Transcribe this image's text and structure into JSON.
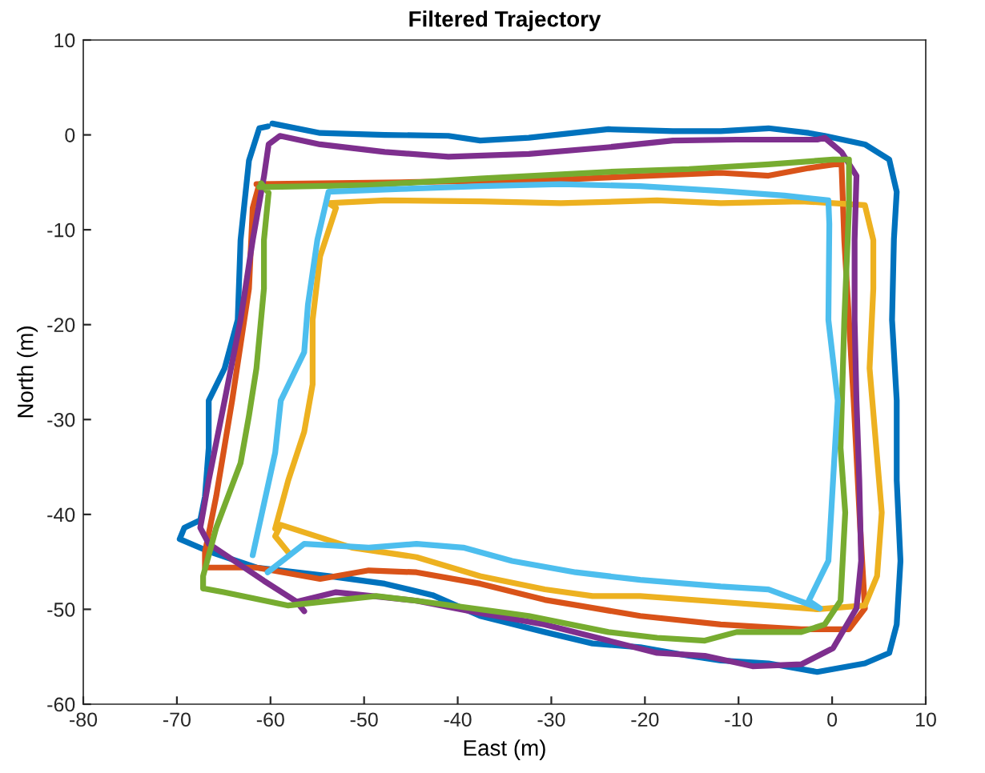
{
  "chart_data": {
    "type": "line",
    "title": "Filtered Trajectory",
    "xlabel": "East (m)",
    "ylabel": "North (m)",
    "xlim": [
      -80,
      10
    ],
    "xticks": [
      -80,
      -70,
      -60,
      -50,
      -40,
      -30,
      -20,
      -10,
      0,
      10
    ],
    "ylim": [
      -60,
      10
    ],
    "yticks": [
      -60,
      -50,
      -40,
      -30,
      -20,
      -10,
      0,
      10
    ],
    "grid": false,
    "marker": "none",
    "line_style": "solid",
    "series": [
      {
        "color": "#0072bd",
        "x": [
          -59.8,
          -54.7,
          -47.8,
          -41,
          -37.6,
          -32.4,
          -23.9,
          -17,
          -11.9,
          -6.8,
          -2.5,
          -0.8,
          3.5,
          6.1,
          6.9,
          6.6,
          6.4,
          6.9,
          6.9,
          7.3,
          6.9,
          6.1,
          3.5,
          -1.6,
          -6.8,
          -11.9,
          -15.3,
          -20.5,
          -25.6,
          -30.7,
          -37.6,
          -42.7,
          -47.8,
          -53.8,
          -61.5,
          -66.6,
          -69.7,
          -69.2,
          -67.5,
          -67,
          -66.6,
          -66.6,
          -64.9,
          -63.5,
          -63.2,
          -62.3,
          -61.2,
          -60.3
        ],
        "values": [
          1.2,
          0.2,
          0,
          -0.1,
          -0.6,
          -0.3,
          0.6,
          0.4,
          0.4,
          0.7,
          0.2,
          -0.1,
          -1,
          -2.6,
          -6,
          -11,
          -19.5,
          -28,
          -36.4,
          -44.9,
          -51.6,
          -54.6,
          -55.7,
          -56.6,
          -55.7,
          -55.4,
          -54.9,
          -54,
          -53.6,
          -52.4,
          -50.7,
          -48.5,
          -47.3,
          -46.5,
          -45.6,
          -43.9,
          -42.6,
          -41.4,
          -40.6,
          -38.1,
          -33,
          -28,
          -24.6,
          -19.5,
          -11.1,
          -2.7,
          0.7,
          0.9
        ]
      },
      {
        "color": "#d95319",
        "x": [
          -61.5,
          -46.1,
          -29,
          -11.9,
          -6.8,
          -2.5,
          1,
          1.3,
          2.3,
          3,
          3.5,
          1.8,
          -3.3,
          -11.9,
          -20.5,
          -30.7,
          -37.6,
          -44.4,
          -49.5,
          -54.7,
          -61.5,
          -67,
          -67,
          -65.8,
          -64.1,
          -62.3,
          -61.9,
          -61.2
        ],
        "values": [
          -5.2,
          -5,
          -4.7,
          -4,
          -4.3,
          -3.5,
          -3,
          -11.1,
          -28,
          -41.4,
          -49.9,
          -52.1,
          -52.1,
          -51.6,
          -50.7,
          -49,
          -47.3,
          -46.1,
          -45.9,
          -46.8,
          -45.6,
          -45.6,
          -44,
          -38.1,
          -28,
          -16.2,
          -7.7,
          -5.2
        ]
      },
      {
        "color": "#edb120",
        "x": [
          -58.1,
          -59.5,
          -58.9,
          -51.3,
          -44.4,
          -37.6,
          -30.7,
          -25.6,
          -20.5,
          -13.6,
          -6.8,
          -1.6,
          3.5,
          4.8,
          5.3,
          4,
          4.4,
          4.4,
          3.5,
          0.1,
          -3.3,
          -11.9,
          -18.7,
          -29,
          -37.6,
          -47.8,
          -53.8,
          -53,
          -54.7,
          -55.5,
          -55.5,
          -56.4,
          -58.1,
          -59.5
        ],
        "values": [
          -44,
          -42.3,
          -41.1,
          -43.5,
          -44.5,
          -46.5,
          -47.9,
          -48.6,
          -48.6,
          -49.1,
          -49.6,
          -50,
          -49.6,
          -46.5,
          -39.8,
          -24.6,
          -16.2,
          -11.1,
          -7.4,
          -7.2,
          -7,
          -7.2,
          -6.9,
          -7.2,
          -7,
          -6.9,
          -7.2,
          -7.7,
          -12.8,
          -19.5,
          -26.3,
          -31.3,
          -36.4,
          -41.5
        ]
      },
      {
        "color": "#7e2f8e",
        "x": [
          -56.4,
          -57.2,
          -53,
          -44.4,
          -37.6,
          -30.7,
          -23.9,
          -18.7,
          -13.6,
          -8.5,
          -3.3,
          0.1,
          2.6,
          3.1,
          2.9,
          2.6,
          2.4,
          2.4,
          2.6,
          1,
          -0.8,
          -1.6,
          -10.2,
          -17,
          -23.9,
          -32.4,
          -41,
          -47.8,
          -54.7,
          -59,
          -60.2,
          -60.7,
          -61.9,
          -63.2,
          -64.9,
          -66.6,
          -67.5,
          -66.6,
          -60.7,
          -57.2
        ],
        "values": [
          -50.2,
          -49.2,
          -48.2,
          -49.1,
          -50.4,
          -51.6,
          -53.3,
          -54.6,
          -54.9,
          -56,
          -55.8,
          -54.1,
          -49.9,
          -44.9,
          -36.4,
          -28,
          -19.5,
          -11.1,
          -4.3,
          -1.8,
          -0.3,
          -0.5,
          -0.5,
          -0.6,
          -1.3,
          -2,
          -2.3,
          -1.8,
          -1,
          -0.1,
          -1,
          -4.4,
          -11.1,
          -19.5,
          -28,
          -36.4,
          -41.4,
          -43.1,
          -47,
          -49.2
        ]
      },
      {
        "color": "#77ac30",
        "x": [
          -61.2,
          -49.5,
          -37.6,
          -23.9,
          -15.3,
          -6.8,
          0.1,
          1.8,
          1.8,
          1.3,
          0.9,
          1.4,
          0.9,
          -0.8,
          -3.3,
          -10.2,
          -13.6,
          -18.7,
          -23.9,
          -32.4,
          -44.4,
          -48.7,
          -58.1,
          -65,
          -67.2,
          -67.2,
          -65.8,
          -63.2,
          -62.3,
          -61.5,
          -60.7,
          -60.7,
          -60.2,
          -61.0
        ],
        "values": [
          -5.5,
          -5.3,
          -4.6,
          -3.9,
          -3.6,
          -3.1,
          -2.6,
          -2.6,
          -7.7,
          -19.5,
          -33,
          -39.8,
          -49.1,
          -51.6,
          -52.4,
          -52.4,
          -53.3,
          -53,
          -52.4,
          -50.7,
          -49.1,
          -48.6,
          -49.6,
          -48.2,
          -47.8,
          -46.5,
          -41.4,
          -34.6,
          -29.6,
          -24.6,
          -16.2,
          -11.1,
          -6.1,
          -5.1
        ]
      },
      {
        "color": "#4dbeee",
        "x": [
          -61.9,
          -59.5,
          -58.9,
          -56.4,
          -56,
          -55,
          -53.8,
          -46.1,
          -37.6,
          -29,
          -20.5,
          -11.9,
          -5.1,
          -0.4,
          -0.3,
          -0.4,
          0.6,
          0.1,
          -0.4,
          -2.5,
          -1.3,
          -6.8,
          -11.9,
          -20.5,
          -27.4,
          -34.2,
          -39.4,
          -44.4,
          -49.5,
          -56.4,
          -60.3
        ],
        "values": [
          -44.3,
          -33.5,
          -28,
          -22.9,
          -17.9,
          -11.1,
          -6,
          -5.7,
          -5.4,
          -5.2,
          -5.4,
          -5.9,
          -6.4,
          -6.9,
          -9.4,
          -19.5,
          -28,
          -36.4,
          -44.9,
          -49.1,
          -49.9,
          -47.9,
          -47.6,
          -46.9,
          -46.1,
          -44.9,
          -43.5,
          -43.1,
          -43.5,
          -43.1,
          -46.1
        ]
      }
    ]
  }
}
